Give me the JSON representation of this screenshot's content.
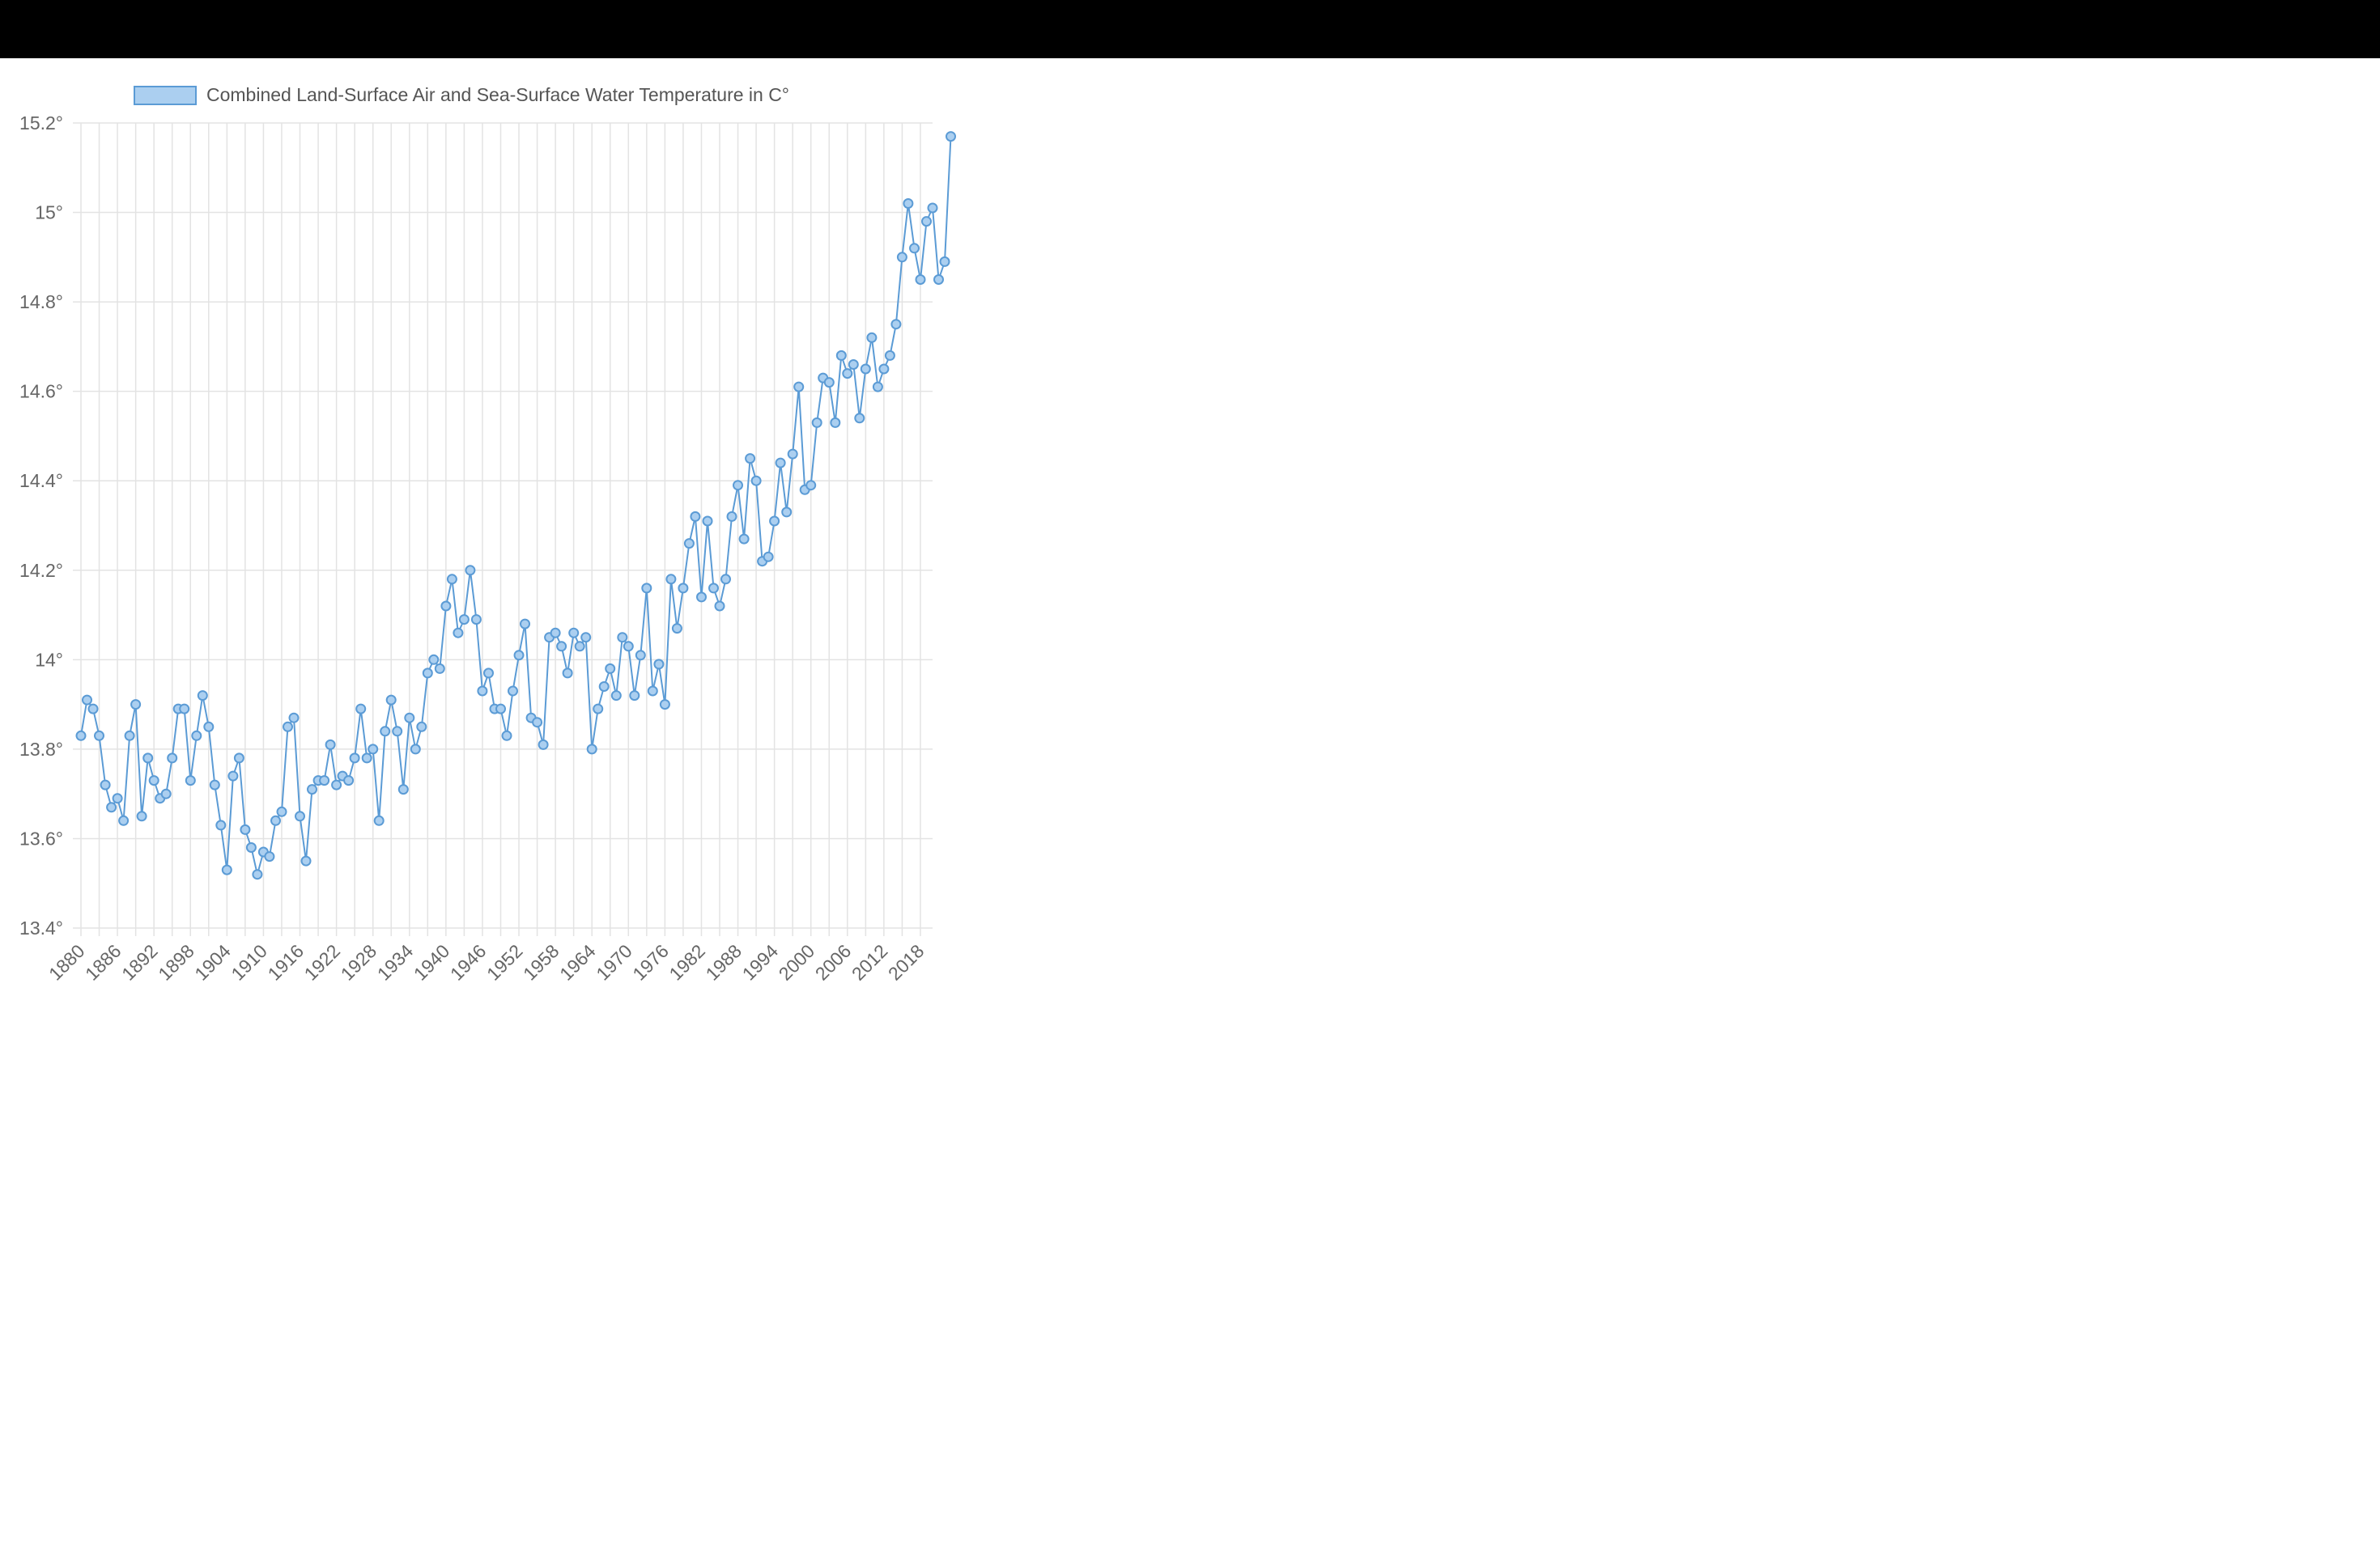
{
  "chart_data": {
    "type": "line",
    "legend": {
      "label": "Combined Land-Surface Air and Sea-Surface Water Temperature in C°",
      "position": "top"
    },
    "colors": {
      "line": "#5b9bd5",
      "point_fill": "#abcff0",
      "grid": "#e3e3e3",
      "tick_text": "#666666"
    },
    "grid": true,
    "x_range": [
      1880,
      2020
    ],
    "x_ticks": [
      "1880",
      "1886",
      "1892",
      "1898",
      "1904",
      "1910",
      "1916",
      "1922",
      "1928",
      "1934",
      "1940",
      "1946",
      "1952",
      "1958",
      "1964",
      "1970",
      "1976",
      "1982",
      "1988",
      "1994",
      "2000",
      "2006",
      "2012",
      "2018"
    ],
    "y_range": [
      13.4,
      15.2
    ],
    "y_ticks": [
      "15.2°",
      "15°",
      "14.8°",
      "14.6°",
      "14.4°",
      "14.2°",
      "14°",
      "13.8°",
      "13.6°",
      "13.4°"
    ],
    "series": [
      {
        "name": "Combined Land-Surface Air and Sea-Surface Water Temperature in C°",
        "values": [
          13.83,
          13.91,
          13.89,
          13.83,
          13.72,
          13.67,
          13.69,
          13.64,
          13.83,
          13.9,
          13.65,
          13.78,
          13.73,
          13.69,
          13.7,
          13.78,
          13.89,
          13.89,
          13.73,
          13.83,
          13.92,
          13.85,
          13.72,
          13.63,
          13.53,
          13.74,
          13.78,
          13.62,
          13.58,
          13.52,
          13.57,
          13.56,
          13.64,
          13.66,
          13.85,
          13.87,
          13.65,
          13.55,
          13.71,
          13.73,
          13.73,
          13.81,
          13.72,
          13.74,
          13.73,
          13.78,
          13.89,
          13.78,
          13.8,
          13.64,
          13.84,
          13.91,
          13.84,
          13.71,
          13.87,
          13.8,
          13.85,
          13.97,
          14.0,
          13.98,
          14.12,
          14.18,
          14.06,
          14.09,
          14.2,
          14.09,
          13.93,
          13.97,
          13.89,
          13.89,
          13.83,
          13.93,
          14.01,
          14.08,
          13.87,
          13.86,
          13.81,
          14.05,
          14.06,
          14.03,
          13.97,
          14.06,
          14.03,
          14.05,
          13.8,
          13.89,
          13.94,
          13.98,
          13.92,
          14.05,
          14.03,
          13.92,
          14.01,
          14.16,
          13.93,
          13.99,
          13.9,
          14.18,
          14.07,
          14.16,
          14.26,
          14.32,
          14.14,
          14.31,
          14.16,
          14.12,
          14.18,
          14.32,
          14.39,
          14.27,
          14.45,
          14.4,
          14.22,
          14.23,
          14.31,
          14.44,
          14.33,
          14.46,
          14.61,
          14.38,
          14.39,
          14.53,
          14.63,
          14.62,
          14.53,
          14.68,
          14.64,
          14.66,
          14.54,
          14.65,
          14.72,
          14.61,
          14.65,
          14.68,
          14.75,
          14.9,
          15.02,
          14.92,
          14.85,
          14.98,
          15.01,
          14.85,
          14.89,
          15.17
        ]
      }
    ]
  }
}
